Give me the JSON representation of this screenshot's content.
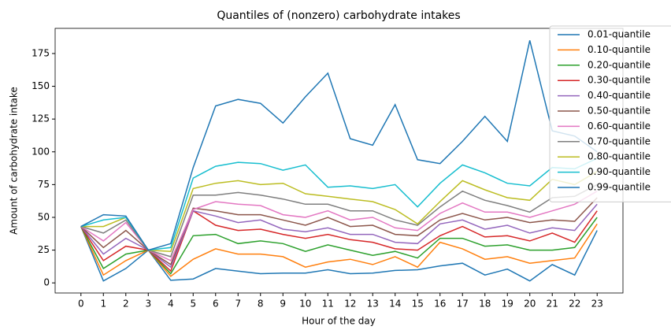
{
  "chart_data": {
    "type": "line",
    "title": "Quantiles of (nonzero) carbohydrate intakes",
    "xlabel": "Hour of the day",
    "ylabel": "Amount of carbohydrate intake",
    "x": [
      0,
      1,
      2,
      3,
      4,
      5,
      6,
      7,
      8,
      9,
      10,
      11,
      12,
      13,
      14,
      15,
      16,
      17,
      18,
      19,
      20,
      21,
      22,
      23
    ],
    "xlim": [
      -1.15,
      24.15
    ],
    "xticks": [
      0,
      1,
      2,
      3,
      4,
      5,
      6,
      7,
      8,
      9,
      10,
      11,
      12,
      13,
      14,
      15,
      16,
      17,
      18,
      19,
      20,
      21,
      22,
      23
    ],
    "ylim": [
      -7.7,
      194.2
    ],
    "yticks": [
      0,
      25,
      50,
      75,
      100,
      125,
      150,
      175
    ],
    "legend": "upper right",
    "series": [
      {
        "name": "0.01-quantile",
        "color": "#1f77b4",
        "values": [
          43,
          1.5,
          11,
          25,
          2,
          3,
          11,
          9,
          7,
          7.5,
          7.5,
          10,
          7,
          7.5,
          9.5,
          10,
          13,
          15,
          6,
          10.5,
          1.5,
          14,
          6,
          40
        ]
      },
      {
        "name": "0.10-quantile",
        "color": "#ff7f0e",
        "values": [
          43,
          6,
          17,
          25,
          5,
          18,
          26,
          22,
          22,
          20,
          12,
          16,
          18,
          14,
          20,
          12,
          31,
          26,
          18,
          20,
          15,
          17,
          19,
          45
        ]
      },
      {
        "name": "0.20-quantile",
        "color": "#2ca02c",
        "values": [
          43,
          11,
          22,
          25,
          7,
          36,
          37,
          30,
          32,
          30,
          24,
          29,
          25,
          21,
          24,
          19,
          34,
          34,
          28,
          29,
          25,
          25,
          27,
          50
        ]
      },
      {
        "name": "0.30-quantile",
        "color": "#d62728",
        "values": [
          43,
          17,
          28,
          25,
          9,
          55,
          44,
          40,
          41,
          37,
          34,
          37,
          33,
          31,
          26,
          25,
          36,
          43,
          35,
          36,
          32,
          38,
          31,
          55
        ]
      },
      {
        "name": "0.40-quantile",
        "color": "#9467bd",
        "values": [
          43,
          22,
          34,
          25,
          12,
          55,
          51,
          46,
          48,
          41,
          39,
          42,
          37,
          37,
          31,
          30,
          45,
          48,
          41,
          44,
          38,
          42,
          40,
          60
        ]
      },
      {
        "name": "0.50-quantile",
        "color": "#8c564b",
        "values": [
          43,
          27,
          40,
          25,
          14,
          57,
          55,
          52,
          52,
          48,
          44,
          50,
          43,
          44,
          37,
          36,
          48,
          53,
          48,
          50,
          46,
          48,
          47,
          65
        ]
      },
      {
        "name": "0.60-quantile",
        "color": "#e377c2",
        "values": [
          43,
          32,
          46,
          25,
          17,
          56,
          62,
          60,
          59,
          52,
          50,
          55,
          48,
          50,
          42,
          40,
          53,
          61,
          54,
          54,
          50,
          55,
          60,
          70
        ]
      },
      {
        "name": "0.70-quantile",
        "color": "#7f7f7f",
        "values": [
          43,
          38,
          48,
          25,
          20,
          67,
          67,
          69,
          67,
          64,
          60,
          60,
          55,
          55,
          48,
          44,
          58,
          70,
          63,
          59,
          54,
          65,
          66,
          75
        ]
      },
      {
        "name": "0.80-quantile",
        "color": "#bcbd22",
        "values": [
          43,
          43,
          50,
          25,
          24,
          72,
          76,
          78,
          75,
          76,
          68,
          66,
          64,
          62,
          56,
          45,
          62,
          78,
          71,
          65,
          63,
          79,
          75,
          85
        ]
      },
      {
        "name": "0.90-quantile",
        "color": "#17becf",
        "values": [
          43,
          48,
          50,
          25,
          27,
          80,
          89,
          92,
          91,
          86,
          90,
          73,
          74,
          72,
          75,
          58,
          76,
          90,
          84,
          76,
          74,
          88,
          87,
          95
        ]
      },
      {
        "name": "0.99-quantile",
        "color": "#1f77b4",
        "values": [
          43,
          52,
          51,
          25,
          30,
          88,
          135,
          140,
          137,
          122,
          142,
          160,
          110,
          105,
          136,
          94,
          91,
          108,
          127,
          108,
          185,
          116,
          112,
          100
        ]
      }
    ]
  }
}
